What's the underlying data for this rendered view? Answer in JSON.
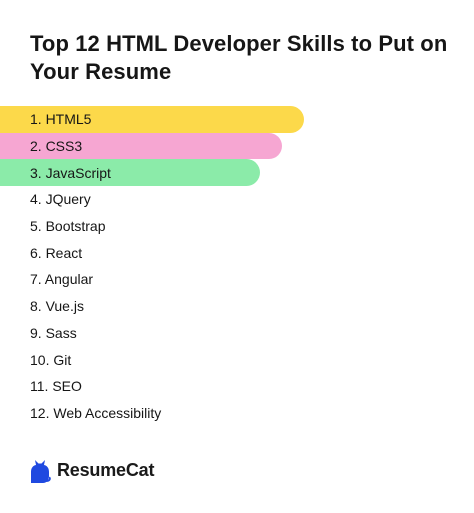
{
  "title": "Top 12 HTML Developer Skills to Put on Your Resume",
  "colors": {
    "highlight_1": "#fcd94a",
    "highlight_2": "#f6a6d2",
    "highlight_3": "#8beba9",
    "brand_blue": "#1f49e0"
  },
  "skills": [
    {
      "label": "1. HTML5",
      "highlight": "highlight_1"
    },
    {
      "label": "2. CSS3",
      "highlight": "highlight_2"
    },
    {
      "label": "3. JavaScript",
      "highlight": "highlight_3"
    },
    {
      "label": "4. JQuery"
    },
    {
      "label": "5. Bootstrap"
    },
    {
      "label": "6. React"
    },
    {
      "label": "7. Angular"
    },
    {
      "label": "8. Vue.js"
    },
    {
      "label": "9. Sass"
    },
    {
      "label": "10. Git"
    },
    {
      "label": "11. SEO"
    },
    {
      "label": "12. Web Accessibility"
    }
  ],
  "brand": {
    "name": "ResumeCat",
    "icon": "cat-icon"
  }
}
